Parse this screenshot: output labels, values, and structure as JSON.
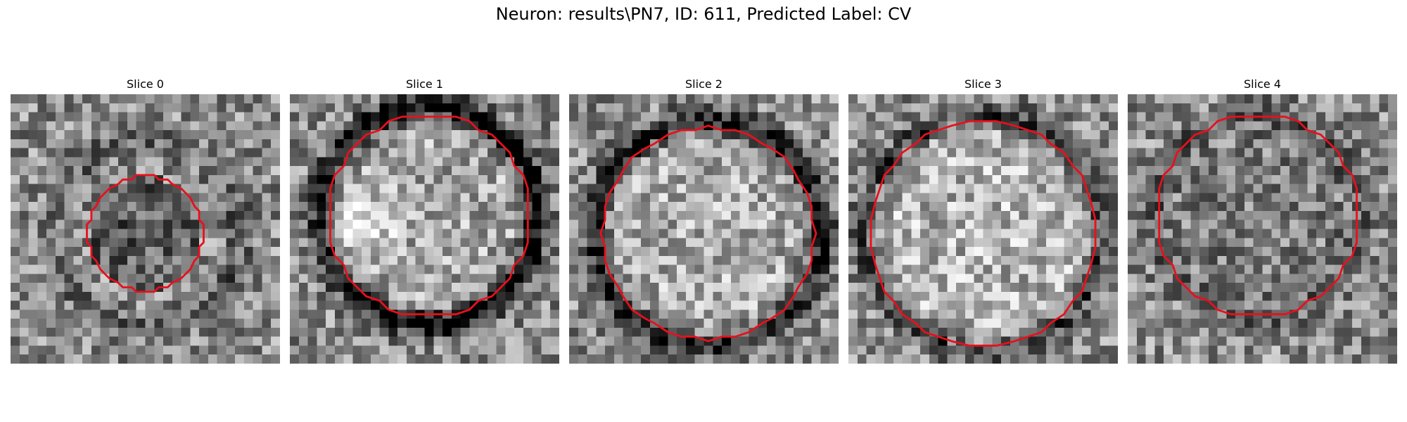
{
  "figure": {
    "title": "Neuron: results\\PN7, ID: 611, Predicted Label: CV",
    "contour_color": "#e8101c"
  },
  "panels": [
    {
      "title": "Slice 0",
      "contour": {
        "center": [
          15,
          15.5
        ],
        "radius": 6.4
      },
      "rim": {
        "radius": 10.5,
        "strength": 0.18
      },
      "inner_brightness": -0.18,
      "bright_blob": null,
      "seed": 11
    },
    {
      "title": "Slice 1",
      "contour": {
        "center": [
          15.5,
          13.5
        ],
        "radius": 11.2
      },
      "rim": {
        "radius": 12.0,
        "strength": 0.55
      },
      "inner_brightness": 0.1,
      "bright_blob": {
        "center": [
          7.5,
          14.5
        ],
        "radius": 3.5,
        "strength": 0.35
      },
      "seed": 23
    },
    {
      "title": "Slice 2",
      "contour": {
        "center": [
          15.5,
          15.5
        ],
        "radius": 11.8
      },
      "rim": {
        "radius": 12.5,
        "strength": 0.45
      },
      "inner_brightness": 0.12,
      "bright_blob": null,
      "seed": 37
    },
    {
      "title": "Slice 3",
      "contour": {
        "center": [
          15.0,
          15.5
        ],
        "radius": 12.6
      },
      "rim": {
        "radius": 13.0,
        "strength": 0.3
      },
      "inner_brightness": 0.15,
      "bright_blob": null,
      "seed": 41
    },
    {
      "title": "Slice 4",
      "contour": {
        "center": [
          14.5,
          13.5
        ],
        "radius": 11.2
      },
      "rim": {
        "radius": 11.5,
        "strength": 0.15
      },
      "inner_brightness": -0.05,
      "bright_blob": null,
      "seed": 59
    }
  ]
}
